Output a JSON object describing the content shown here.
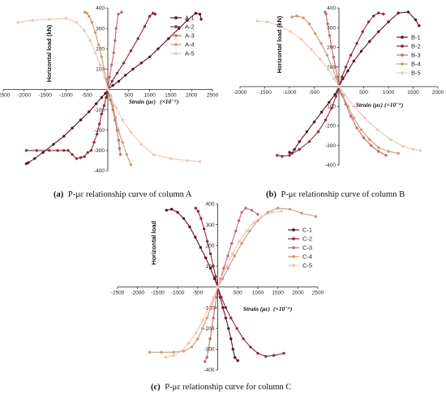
{
  "chart_data": [
    {
      "type": "line",
      "panel": "a",
      "caption_label": "(a)",
      "caption_text": "P-με relationship curve of column A",
      "xlabel": "Strain (με)",
      "xunit": "(×10⁻⁶)",
      "ylabel": "Horizontal load (kN)",
      "xlim": [
        -2500,
        2500
      ],
      "ylim": [
        -400,
        400
      ],
      "xticks": [
        -2500,
        -2000,
        -1500,
        -1000,
        -500,
        0,
        500,
        1000,
        1500,
        2000,
        2500
      ],
      "yticks": [
        -400,
        -300,
        -200,
        -100,
        0,
        100,
        200,
        300,
        400
      ],
      "xtick_labels": [
        "-2500",
        "-2000",
        "-1500",
        "-1000",
        "-500",
        "0",
        "500",
        "1000",
        "1500",
        "2000",
        "2500"
      ],
      "ytick_labels": [
        "-400",
        "-300",
        "-200",
        "-100",
        "0",
        "100",
        "200",
        "300",
        "400"
      ],
      "legend_position": "right",
      "series": [
        {
          "name": "A-1",
          "color": "#5a1424",
          "x": [
            0,
            120,
            260,
            420,
            600,
            800,
            1000,
            1200,
            1450,
            1700,
            1900,
            2100,
            2200,
            2230,
            0,
            -60,
            -150,
            -280,
            -450,
            -650,
            -850,
            -1050,
            -1300,
            -1550,
            -1750,
            -1900,
            -1950
          ],
          "y": [
            0,
            20,
            40,
            70,
            100,
            130,
            160,
            200,
            250,
            300,
            340,
            375,
            370,
            345,
            0,
            -20,
            -40,
            -70,
            -110,
            -150,
            -190,
            -230,
            -270,
            -310,
            -340,
            -360,
            -365
          ]
        },
        {
          "name": "A-2",
          "color": "#8e2c3c",
          "x": [
            0,
            100,
            220,
            380,
            550,
            720,
            880,
            1000,
            1080,
            1130,
            0,
            -40,
            -90,
            -150,
            -200,
            -260,
            -330,
            -400,
            -480,
            -560,
            -650,
            -750,
            -850,
            -950,
            -1050,
            -1200,
            -1400,
            -1700,
            -1950
          ],
          "y": [
            0,
            40,
            80,
            130,
            190,
            250,
            310,
            360,
            375,
            370,
            0,
            -40,
            -80,
            -120,
            -170,
            -220,
            -260,
            -300,
            -310,
            -330,
            -335,
            -340,
            -320,
            -300,
            -300,
            -300,
            -300,
            -300,
            -300
          ]
        },
        {
          "name": "A-3",
          "color": "#c06c70",
          "x": [
            0,
            40,
            90,
            140,
            170,
            200,
            250,
            330,
            0,
            60,
            120,
            170,
            220,
            260,
            280,
            300
          ],
          "y": [
            0,
            60,
            120,
            180,
            240,
            300,
            370,
            380,
            0,
            -50,
            -100,
            -150,
            -200,
            -250,
            -290,
            -320
          ]
        },
        {
          "name": "A-4",
          "color": "#cc9a72",
          "x": [
            0,
            -40,
            -90,
            -150,
            -220,
            -300,
            -380,
            -450,
            -500,
            -550,
            0,
            60,
            120,
            180,
            250,
            350,
            450,
            550
          ],
          "y": [
            0,
            50,
            100,
            160,
            220,
            280,
            330,
            360,
            375,
            380,
            0,
            -30,
            -80,
            -140,
            -200,
            -260,
            -320,
            -370
          ]
        },
        {
          "name": "A-5",
          "color": "#ecc6b6",
          "x": [
            0,
            -80,
            -180,
            -300,
            -420,
            -560,
            -750,
            -1000,
            -1400,
            -1800,
            -2150,
            0,
            80,
            200,
            350,
            550,
            800,
            1100,
            1500,
            1900,
            2200
          ],
          "y": [
            0,
            60,
            120,
            180,
            240,
            290,
            330,
            350,
            345,
            340,
            330,
            0,
            -40,
            -90,
            -150,
            -210,
            -270,
            -320,
            -340,
            -350,
            -355
          ]
        }
      ]
    },
    {
      "type": "line",
      "panel": "b",
      "caption_label": "(b)",
      "caption_text": "P-με relationship curve of column B",
      "xlabel": "Strain (με)",
      "xunit": "(×10⁻⁶)",
      "ylabel": "Horizontal load (kN)",
      "xlim": [
        -2000,
        2000
      ],
      "ylim": [
        -400,
        400
      ],
      "xticks": [
        -2000,
        -1500,
        -1000,
        -500,
        0,
        500,
        1000,
        1500,
        2000
      ],
      "yticks": [
        -400,
        -300,
        -200,
        -100,
        0,
        100,
        200,
        300,
        400
      ],
      "xtick_labels": [
        "-2000",
        "-1500",
        "-1000",
        "-500",
        "0",
        "500",
        "1000",
        "1500",
        "2000"
      ],
      "ytick_labels": [
        "-400",
        "-300",
        "-200",
        "-100",
        "0",
        "100",
        "200",
        "300",
        "400"
      ],
      "legend_position": "right",
      "series": [
        {
          "name": "B-1",
          "color": "#5a1424",
          "x": [
            0,
            80,
            180,
            300,
            450,
            620,
            800,
            1000,
            1200,
            1400,
            1550,
            1620,
            0,
            -80,
            -200,
            -350,
            -500,
            -650,
            -800,
            -900,
            -950,
            -1000
          ],
          "y": [
            0,
            40,
            80,
            130,
            180,
            230,
            280,
            330,
            375,
            380,
            340,
            310,
            0,
            -40,
            -80,
            -130,
            -180,
            -230,
            -280,
            -320,
            -340,
            -335
          ]
        },
        {
          "name": "B-2",
          "color": "#8e2c3c",
          "x": [
            0,
            60,
            140,
            240,
            360,
            480,
            600,
            700,
            800,
            900,
            0,
            -60,
            -150,
            -270,
            -420,
            -600,
            -800,
            -1000,
            -1150,
            -1250
          ],
          "y": [
            0,
            50,
            100,
            160,
            220,
            280,
            330,
            360,
            375,
            370,
            0,
            -50,
            -110,
            -170,
            -230,
            -280,
            -320,
            -350,
            -355,
            -350
          ]
        },
        {
          "name": "B-3",
          "color": "#c06c70",
          "x": [
            0,
            -30,
            -70,
            -110,
            -150,
            -190,
            -230,
            -260,
            -280,
            0,
            60,
            140,
            240,
            360,
            500,
            650,
            800,
            950
          ],
          "y": [
            0,
            50,
            100,
            150,
            200,
            260,
            320,
            370,
            380,
            0,
            -40,
            -90,
            -150,
            -210,
            -260,
            -300,
            -330,
            -350
          ]
        },
        {
          "name": "B-4",
          "color": "#cc9a72",
          "x": [
            0,
            -60,
            -140,
            -240,
            -360,
            -480,
            -600,
            -720,
            -850,
            -950,
            0,
            80,
            180,
            300,
            450,
            620,
            800,
            1000,
            1200
          ],
          "y": [
            0,
            50,
            100,
            160,
            220,
            270,
            320,
            350,
            360,
            355,
            0,
            -50,
            -100,
            -160,
            -220,
            -270,
            -310,
            -330,
            -340
          ]
        },
        {
          "name": "B-5",
          "color": "#ecc6b6",
          "x": [
            0,
            -100,
            -220,
            -380,
            -560,
            -760,
            -980,
            -1200,
            -1450,
            -1650,
            0,
            120,
            300,
            520,
            780,
            1050,
            1300,
            1500,
            1650
          ],
          "y": [
            0,
            40,
            90,
            140,
            190,
            240,
            280,
            310,
            330,
            335,
            0,
            -40,
            -100,
            -160,
            -220,
            -270,
            -305,
            -320,
            -325
          ]
        }
      ]
    },
    {
      "type": "line",
      "panel": "c",
      "caption_label": "(c)",
      "caption_text": "P-με relationship curve for column C",
      "xlabel": "Strain (με)",
      "xunit": "(×10⁻⁶)",
      "ylabel": "Horizontal load",
      "xlim": [
        -2500,
        2500
      ],
      "ylim": [
        -400,
        400
      ],
      "xticks": [
        -2500,
        -2000,
        -1500,
        -1000,
        -500,
        0,
        500,
        1000,
        1500,
        2000,
        2500
      ],
      "yticks": [
        -400,
        -300,
        -200,
        -100,
        0,
        100,
        200,
        300,
        400
      ],
      "xtick_labels": [
        "-2500",
        "-2000",
        "-1500",
        "-1000",
        "-500",
        "0",
        "500",
        "1000",
        "1500",
        "2000",
        "2500"
      ],
      "ytick_labels": [
        "-400",
        "-300",
        "-200",
        "-100",
        "0",
        "100",
        "200",
        "300",
        "400"
      ],
      "legend_position": "right",
      "series": [
        {
          "name": "C-1",
          "color": "#5a1424",
          "x": [
            0,
            -80,
            -180,
            -300,
            -430,
            -560,
            -700,
            -850,
            -1000,
            -1150,
            -1280,
            0,
            60,
            130,
            200,
            270,
            330,
            380,
            430,
            500
          ],
          "y": [
            0,
            40,
            90,
            140,
            190,
            240,
            290,
            330,
            360,
            375,
            370,
            0,
            -50,
            -100,
            -150,
            -200,
            -250,
            -300,
            -340,
            -355
          ]
        },
        {
          "name": "C-2",
          "color": "#8e2c3c",
          "x": [
            0,
            -50,
            -110,
            -180,
            -260,
            -340,
            -420,
            -490,
            -550,
            0,
            90,
            200,
            330,
            480,
            640,
            820,
            1000,
            1200,
            1400,
            1650
          ],
          "y": [
            0,
            50,
            100,
            160,
            220,
            280,
            330,
            365,
            380,
            0,
            -50,
            -100,
            -150,
            -200,
            -250,
            -290,
            -320,
            -335,
            -330,
            -320
          ]
        },
        {
          "name": "C-3",
          "color": "#c06c70",
          "x": [
            0,
            70,
            150,
            250,
            350,
            450,
            530,
            600,
            700,
            850,
            1000,
            0,
            -30,
            -70,
            -110,
            -150,
            -190,
            -230,
            -270,
            -320
          ],
          "y": [
            0,
            40,
            90,
            150,
            210,
            270,
            320,
            360,
            380,
            370,
            350,
            0,
            -50,
            -100,
            -150,
            -200,
            -250,
            -300,
            -340,
            -360
          ]
        },
        {
          "name": "C-4",
          "color": "#cc9a72",
          "x": [
            0,
            120,
            260,
            420,
            600,
            800,
            1000,
            1250,
            1500,
            1800,
            2100,
            2450,
            0,
            -80,
            -170,
            -270,
            -380,
            -500,
            -650,
            -850,
            -1100,
            -1400,
            -1700
          ],
          "y": [
            0,
            40,
            90,
            150,
            210,
            270,
            320,
            360,
            380,
            375,
            355,
            340,
            0,
            -50,
            -100,
            -150,
            -200,
            -250,
            -290,
            -310,
            -315,
            -315,
            -315
          ]
        },
        {
          "name": "C-5",
          "color": "#ecc6b6",
          "x": [
            0,
            100,
            220,
            370,
            540,
            720,
            900,
            1100,
            1350,
            1600,
            0,
            -100,
            -220,
            -370,
            -540,
            -720,
            -900,
            -1100,
            -1300
          ],
          "y": [
            0,
            50,
            100,
            160,
            220,
            270,
            310,
            340,
            360,
            365,
            0,
            -50,
            -100,
            -160,
            -220,
            -270,
            -310,
            -330,
            -340
          ]
        }
      ]
    }
  ]
}
